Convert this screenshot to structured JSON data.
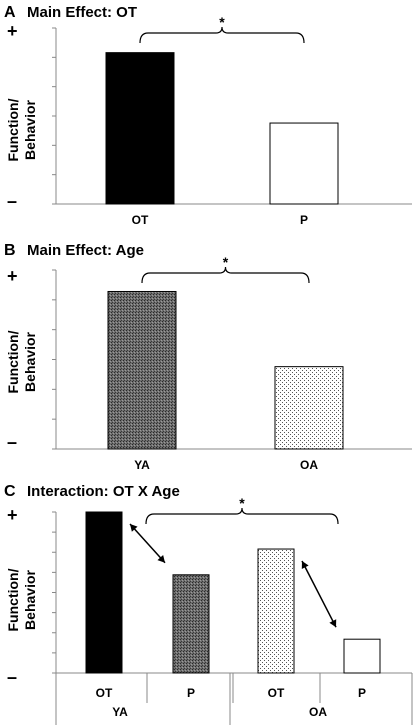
{
  "chart_data": [
    {
      "type": "bar",
      "panel_letter": "A",
      "title": "Main Effect: OT",
      "ylabel": "Function/\nBehavior",
      "y_plus": "+",
      "y_minus": "–",
      "ylim": [
        0,
        1
      ],
      "categories": [
        "OT",
        "P"
      ],
      "values": [
        0.86,
        0.46
      ],
      "fills": [
        "solid-black",
        "white"
      ],
      "significance": {
        "label": "*",
        "from": 0,
        "to": 1
      }
    },
    {
      "type": "bar",
      "panel_letter": "B",
      "title": "Main Effect: Age",
      "ylabel": "Function/\nBehavior",
      "y_plus": "+",
      "y_minus": "–",
      "ylim": [
        0,
        1
      ],
      "categories": [
        "YA",
        "OA"
      ],
      "values": [
        0.88,
        0.46
      ],
      "fills": [
        "dark-gray-dither",
        "light-dots"
      ],
      "significance": {
        "label": "*",
        "from": 0,
        "to": 1
      }
    },
    {
      "type": "bar",
      "panel_letter": "C",
      "title": "Interaction: OT X Age",
      "ylabel": "Function/\nBehavior",
      "y_plus": "+",
      "y_minus": "–",
      "ylim": [
        0,
        1
      ],
      "categories": [
        "OT",
        "P",
        "OT",
        "P"
      ],
      "groups": [
        "YA",
        "OA"
      ],
      "values": [
        1.0,
        0.61,
        0.77,
        0.21
      ],
      "fills": [
        "solid-black",
        "dark-gray-dither",
        "light-dots",
        "white"
      ],
      "significance": {
        "label": "*",
        "from": 0,
        "to": 2
      },
      "double_arrows": [
        [
          0,
          1
        ],
        [
          2,
          3
        ]
      ]
    }
  ]
}
